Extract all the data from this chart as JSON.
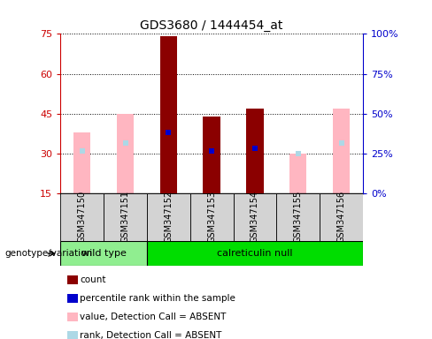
{
  "title": "GDS3680 / 1444454_at",
  "samples": [
    "GSM347150",
    "GSM347151",
    "GSM347152",
    "GSM347153",
    "GSM347154",
    "GSM347155",
    "GSM347156"
  ],
  "absent_value": [
    38,
    45,
    null,
    44,
    null,
    30,
    47
  ],
  "absent_rank": [
    31,
    34,
    null,
    31,
    32,
    30,
    34
  ],
  "count_value": [
    null,
    null,
    74,
    44,
    47,
    null,
    null
  ],
  "percentile_rank": [
    null,
    null,
    38,
    31,
    32,
    null,
    null
  ],
  "ylim_left": [
    15,
    75
  ],
  "ylim_right": [
    0,
    100
  ],
  "yticks_left": [
    15,
    30,
    45,
    60,
    75
  ],
  "yticks_right": [
    0,
    25,
    50,
    75,
    100
  ],
  "ytick_right_labels": [
    "0%",
    "25%",
    "50%",
    "75%",
    "100%"
  ],
  "bar_width": 0.4,
  "color_count": "#8B0000",
  "color_percentile": "#0000CC",
  "color_absent_value": "#FFB6C1",
  "color_absent_rank": "#ADD8E6",
  "left_tick_color": "#CC0000",
  "right_tick_color": "#0000CC",
  "wt_color": "#90EE90",
  "cn_color": "#00DD00",
  "gray_box": "#D3D3D3"
}
